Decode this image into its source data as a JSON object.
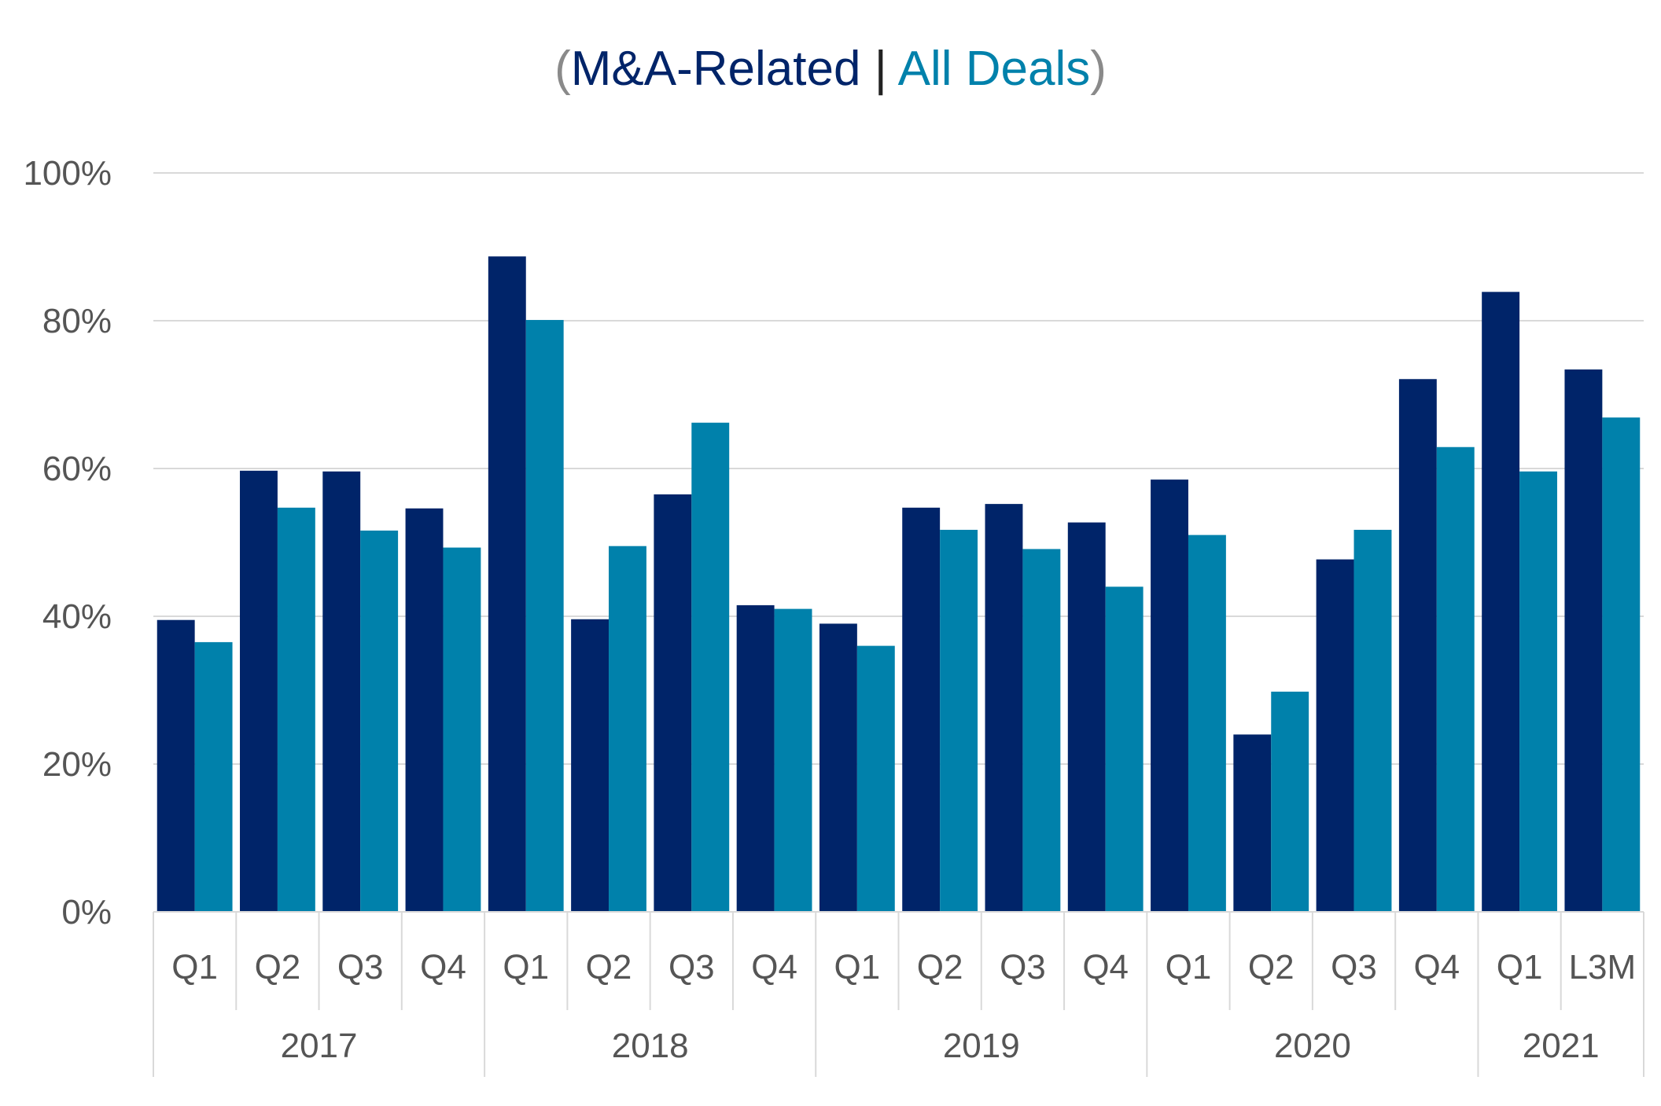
{
  "title": {
    "paren_open": "(",
    "series1": "M&A-Related",
    "separator": "|",
    "series2": "All Deals",
    "paren_close": ")"
  },
  "colors": {
    "series1": "#002469",
    "series2": "#0081ab",
    "grid": "#d9d9d9",
    "text": "#555555"
  },
  "chart_data": {
    "type": "bar",
    "title": "(M&A-Related | All Deals)",
    "xlabel": "",
    "ylabel": "",
    "ylim": [
      0,
      100
    ],
    "yticks": [
      "0%",
      "20%",
      "40%",
      "60%",
      "80%",
      "100%"
    ],
    "yticks_values": [
      0,
      20,
      40,
      60,
      80,
      100
    ],
    "grid": true,
    "legend": "title",
    "categories": [
      "Q1",
      "Q2",
      "Q3",
      "Q4",
      "Q1",
      "Q2",
      "Q3",
      "Q4",
      "Q1",
      "Q2",
      "Q3",
      "Q4",
      "Q1",
      "Q2",
      "Q3",
      "Q4",
      "Q1",
      "L3M"
    ],
    "groups": [
      {
        "label": "2017",
        "count": 4
      },
      {
        "label": "2018",
        "count": 4
      },
      {
        "label": "2019",
        "count": 4
      },
      {
        "label": "2020",
        "count": 4
      },
      {
        "label": "2021",
        "count": 2
      }
    ],
    "series": [
      {
        "name": "M&A-Related",
        "values": [
          39.5,
          59.7,
          59.6,
          54.6,
          88.7,
          39.6,
          56.5,
          41.5,
          39,
          54.7,
          55.2,
          52.7,
          58.5,
          24,
          47.7,
          72.1,
          83.9,
          73.4
        ]
      },
      {
        "name": "All Deals",
        "values": [
          36.5,
          54.7,
          51.6,
          49.3,
          80.1,
          49.5,
          66.2,
          41,
          36,
          51.7,
          49.1,
          44,
          51,
          29.8,
          51.7,
          62.9,
          59.6,
          66.9
        ]
      }
    ]
  }
}
